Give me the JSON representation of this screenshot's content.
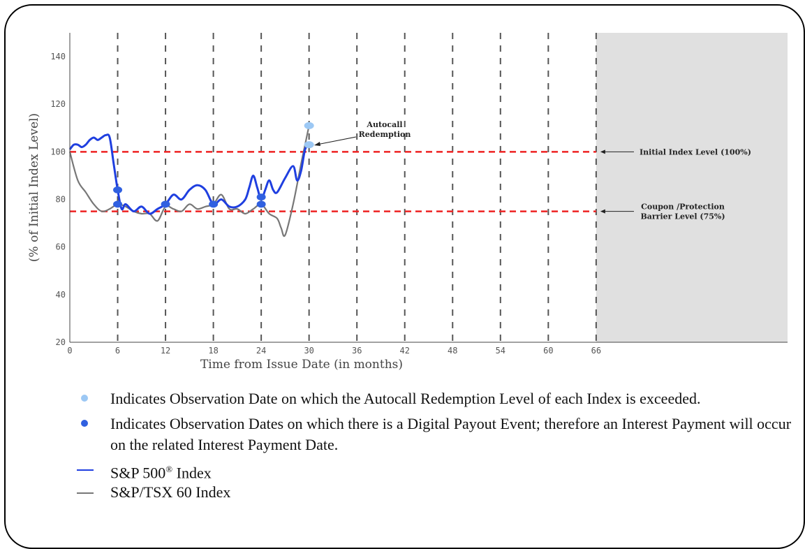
{
  "chart_data": {
    "type": "line",
    "xlabel": "Time from Issue Date (in months)",
    "ylabel": "(% of Initial Index Level)",
    "xlim": [
      0,
      90
    ],
    "ylim": [
      20,
      150
    ],
    "x_ticks": [
      0,
      6,
      12,
      18,
      24,
      30,
      36,
      42,
      48,
      54,
      60,
      66
    ],
    "y_ticks": [
      20,
      40,
      60,
      80,
      100,
      120,
      140
    ],
    "observation_dates": [
      6,
      12,
      18,
      24,
      30,
      36,
      42,
      48,
      54,
      60,
      66
    ],
    "shaded_region": [
      66,
      90
    ],
    "series": [
      {
        "name": "S&P 500® Index",
        "color": "#1f3fe0",
        "x": [
          0,
          0.5,
          1,
          1.5,
          2,
          2.5,
          3,
          3.5,
          4,
          4.5,
          5,
          5.5,
          6,
          6.5,
          7,
          8,
          9,
          10,
          11,
          12,
          13,
          14,
          15,
          16,
          17,
          18,
          19,
          20,
          21,
          22,
          22.5,
          23,
          23.5,
          24,
          24.5,
          25,
          25.5,
          26,
          27,
          28,
          28.5,
          29,
          29.5,
          30
        ],
        "y": [
          101,
          103,
          103,
          102,
          103,
          105,
          106,
          105,
          106,
          107,
          106,
          95,
          84,
          76,
          78,
          75,
          77,
          74,
          76,
          78,
          82,
          80,
          84,
          86,
          84,
          78,
          80,
          77,
          77,
          80,
          85,
          90,
          85,
          80,
          84,
          88,
          84,
          83,
          89,
          94,
          88,
          92,
          101,
          103
        ]
      },
      {
        "name": "S&P/TSX 60 Index",
        "color": "#777777",
        "x": [
          0,
          1,
          2,
          3,
          4,
          5,
          6,
          7,
          8,
          9,
          10,
          11,
          12,
          13,
          14,
          15,
          16,
          17,
          18,
          19,
          20,
          21,
          22,
          23,
          24,
          25,
          26,
          26.5,
          27,
          28,
          29,
          29.5,
          30
        ],
        "y": [
          100,
          88,
          83,
          78,
          75,
          76,
          78,
          77,
          75,
          74,
          74,
          71,
          77,
          76,
          75,
          78,
          76,
          77,
          78,
          82,
          76,
          76,
          74,
          76,
          78,
          74,
          72,
          68,
          65,
          78,
          95,
          103,
          111
        ]
      }
    ],
    "reference_lines": [
      {
        "y": 100,
        "label": "Initial Index Level (100%)",
        "color": "#ee2222"
      },
      {
        "y": 75,
        "label": "Coupon /Protection Barrier Level (75%)",
        "label_lines": [
          "Coupon /Protection",
          "Barrier Level (75%)"
        ],
        "color": "#ee2222"
      }
    ],
    "digital_payout_points": [
      {
        "x": 6,
        "y": 84
      },
      {
        "x": 6,
        "y": 78
      },
      {
        "x": 12,
        "y": 78
      },
      {
        "x": 18,
        "y": 78
      },
      {
        "x": 24,
        "y": 81
      },
      {
        "x": 24,
        "y": 78
      }
    ],
    "autocall_points": [
      {
        "x": 30,
        "y": 111
      },
      {
        "x": 30,
        "y": 103
      }
    ],
    "annotations": [
      {
        "text": "Autocall Redemption",
        "lines": [
          "Autocall",
          "Redemption"
        ]
      }
    ],
    "colors": {
      "digital_payout_dot": "#3060e0",
      "autocall_dot": "#9cc8f4",
      "shaded": "#e0e0e0"
    }
  },
  "legend": {
    "autocall_text": "Indicates Observation Date on which the Autocall Redemption Level of each Index is exceeded.",
    "digital_text": "Indicates Observation Dates on which there is a Digital Payout Event; therefore an Interest Payment will occur on the related Interest Payment Date.",
    "sp500_text": "S&P 500",
    "sp500_mark": "®",
    "sp500_suffix": " Index",
    "tsx_text": "S&P/TSX 60 Index"
  }
}
